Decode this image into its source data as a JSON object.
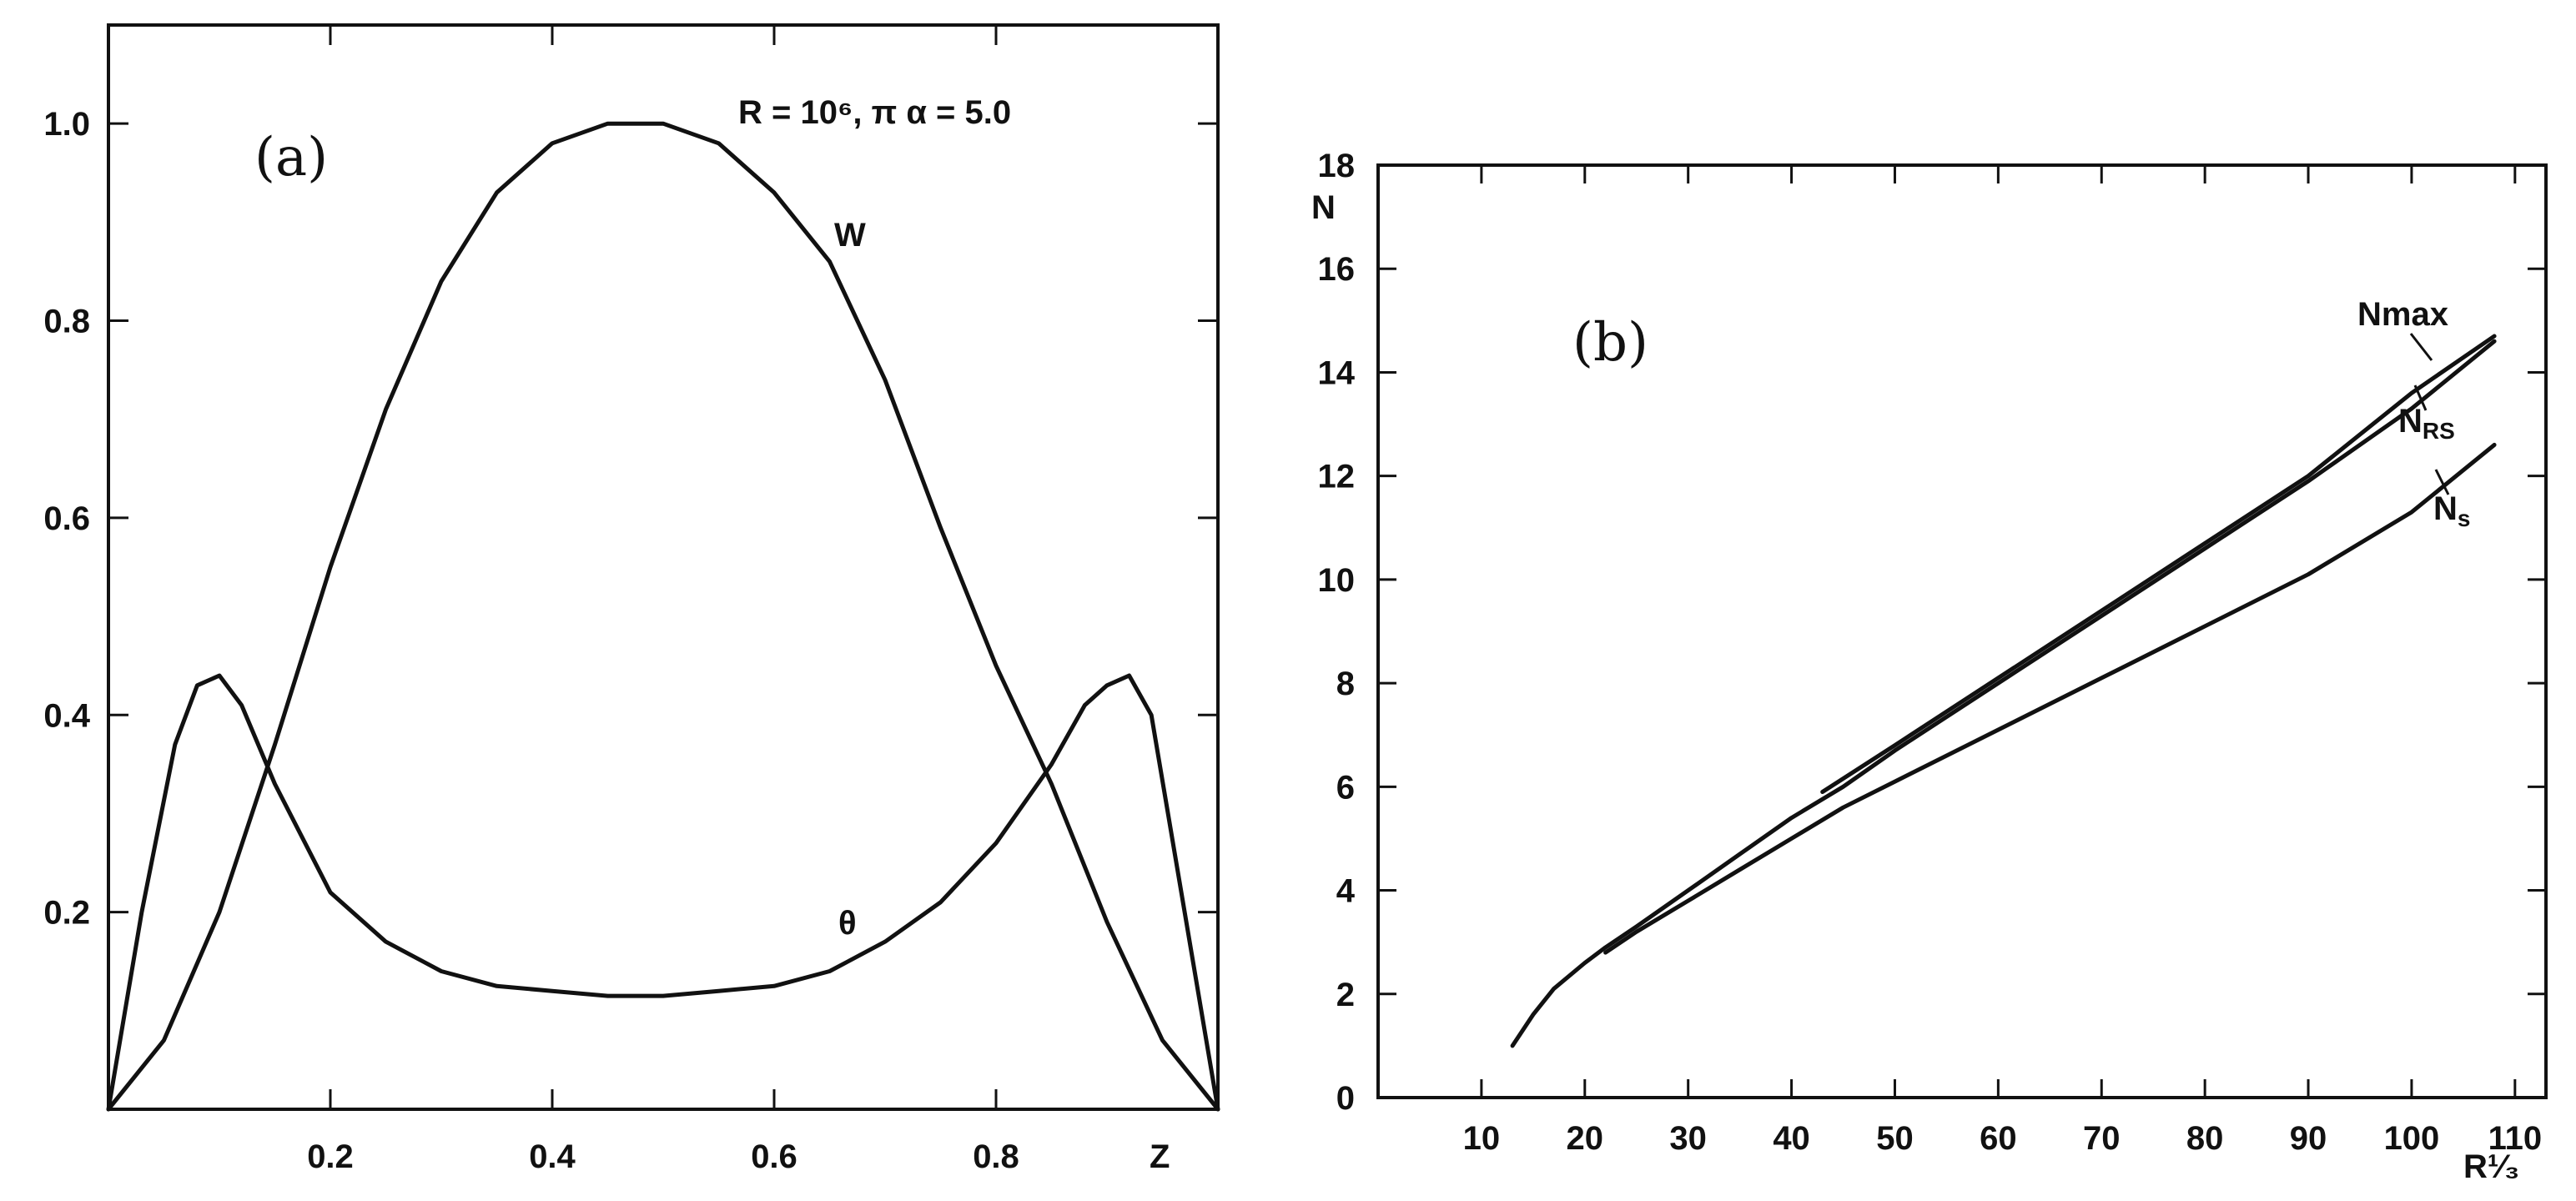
{
  "chart_data": [
    {
      "type": "line",
      "panel_label": "(a)",
      "annotation": "R = 10⁶,  π α = 5.0",
      "xlabel": "Z",
      "ylabel": "",
      "xlim": [
        0,
        1
      ],
      "ylim": [
        0,
        1.1
      ],
      "xticks": [
        "0.2",
        "0.4",
        "0.6",
        "0.8"
      ],
      "yticks": [
        "0.2",
        "0.4",
        "0.6",
        "0.8",
        "1.0"
      ],
      "series": [
        {
          "name": "W",
          "x": [
            0,
            0.05,
            0.1,
            0.15,
            0.2,
            0.25,
            0.3,
            0.35,
            0.4,
            0.45,
            0.5,
            0.55,
            0.6,
            0.65,
            0.7,
            0.75,
            0.8,
            0.85,
            0.9,
            0.95,
            1.0
          ],
          "y": [
            0,
            0.07,
            0.2,
            0.37,
            0.55,
            0.71,
            0.84,
            0.93,
            0.98,
            1.0,
            1.0,
            0.98,
            0.93,
            0.86,
            0.74,
            0.59,
            0.45,
            0.33,
            0.19,
            0.07,
            0
          ]
        },
        {
          "name": "θ",
          "x": [
            0,
            0.03,
            0.06,
            0.08,
            0.1,
            0.12,
            0.15,
            0.2,
            0.25,
            0.3,
            0.35,
            0.4,
            0.45,
            0.5,
            0.55,
            0.6,
            0.65,
            0.7,
            0.75,
            0.8,
            0.85,
            0.88,
            0.9,
            0.92,
            0.94,
            0.97,
            1.0
          ],
          "y": [
            0,
            0.2,
            0.37,
            0.43,
            0.44,
            0.41,
            0.33,
            0.22,
            0.17,
            0.14,
            0.125,
            0.12,
            0.115,
            0.115,
            0.12,
            0.125,
            0.14,
            0.17,
            0.21,
            0.27,
            0.35,
            0.41,
            0.43,
            0.44,
            0.4,
            0.2,
            0
          ]
        }
      ]
    },
    {
      "type": "line",
      "panel_label": "(b)",
      "xlabel": "R¹⁄₃",
      "ylabel": "N",
      "xlim": [
        0,
        113
      ],
      "ylim": [
        0,
        18
      ],
      "xticks": [
        "10",
        "20",
        "30",
        "40",
        "50",
        "60",
        "70",
        "80",
        "90",
        "100",
        "110"
      ],
      "yticks": [
        "0",
        "2",
        "4",
        "6",
        "8",
        "10",
        "12",
        "14",
        "16",
        "18"
      ],
      "series": [
        {
          "name": "Nmax",
          "x": [
            43,
            50,
            60,
            70,
            80,
            90,
            100,
            108
          ],
          "y": [
            5.9,
            6.8,
            8.1,
            9.4,
            10.7,
            12.0,
            13.6,
            14.7
          ]
        },
        {
          "name": "NRS",
          "x": [
            13,
            15,
            17,
            20,
            22,
            25,
            30,
            35,
            40,
            45,
            50,
            60,
            70,
            80,
            90,
            100,
            108
          ],
          "y": [
            1.0,
            1.6,
            2.1,
            2.6,
            2.9,
            3.3,
            4.0,
            4.7,
            5.4,
            6.0,
            6.7,
            8.0,
            9.3,
            10.6,
            11.9,
            13.3,
            14.6
          ]
        },
        {
          "name": "Ns",
          "x": [
            22,
            25,
            30,
            35,
            40,
            45,
            50,
            60,
            70,
            80,
            90,
            100,
            108
          ],
          "y": [
            2.8,
            3.2,
            3.8,
            4.4,
            5.0,
            5.6,
            6.1,
            7.1,
            8.1,
            9.1,
            10.1,
            11.3,
            12.6
          ]
        }
      ],
      "series_labels": [
        "Nmax",
        "N",
        "RS",
        "N",
        "s"
      ]
    }
  ]
}
